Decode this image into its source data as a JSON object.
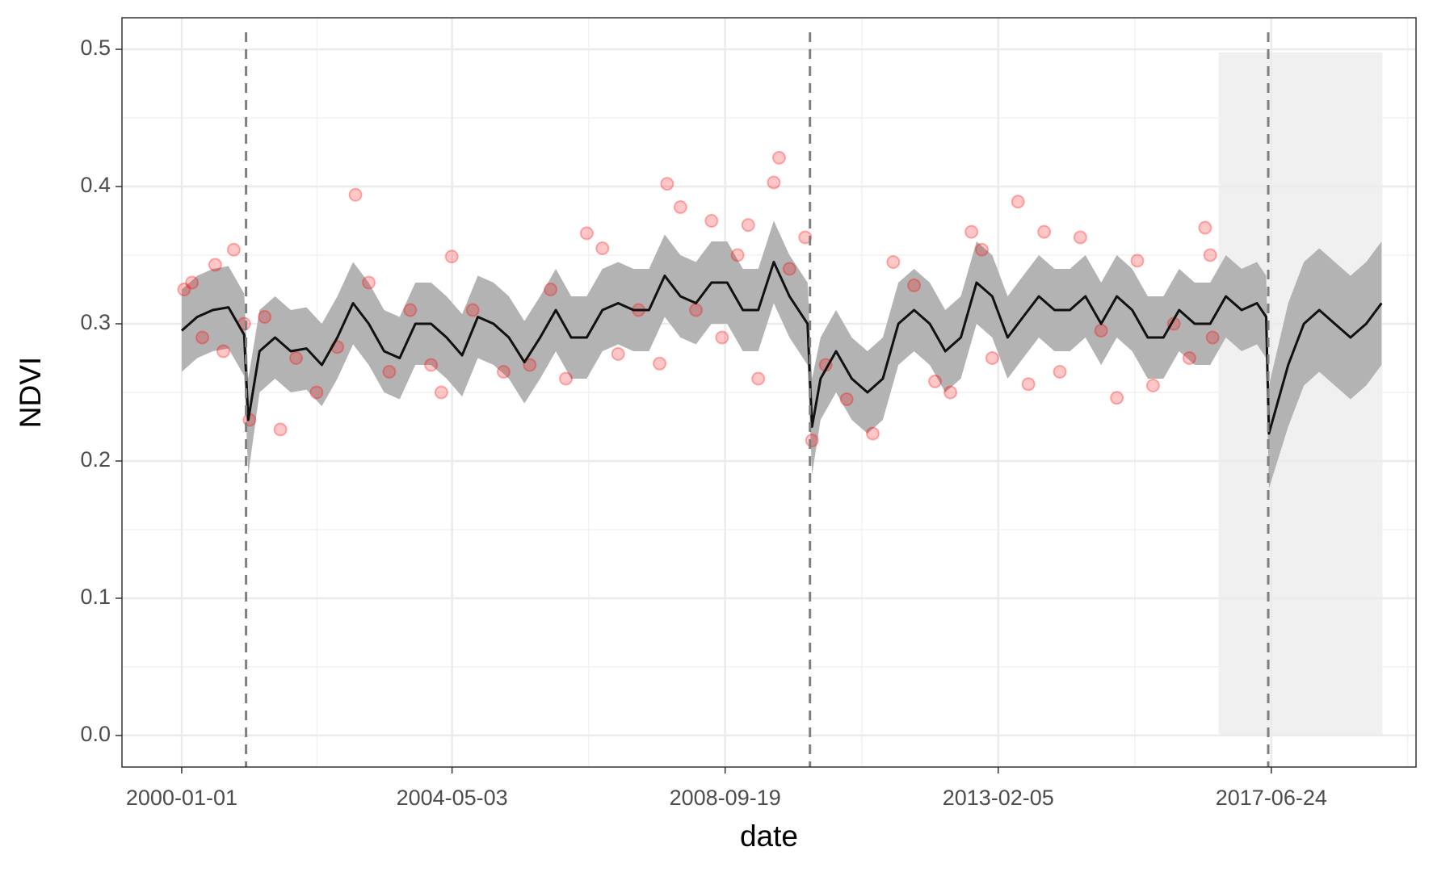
{
  "chart_data": {
    "type": "line",
    "xlabel": "date",
    "ylabel": "NDVI",
    "xlim": [
      "1999-01-16",
      "2019-10-20"
    ],
    "xticks": [
      "2000-01-01",
      "2004-05-03",
      "2008-09-19",
      "2013-02-05",
      "2017-06-24"
    ],
    "xminor": [
      "2002-03-03",
      "2006-07-12",
      "2010-11-28",
      "2015-04-16",
      "2019-09-01"
    ],
    "ylim": [
      -0.023,
      0.523
    ],
    "yticks": [
      {
        "value": 0,
        "label": "0.0"
      },
      0.1,
      0.2,
      0.3,
      0.4,
      0.5
    ],
    "yminor": [
      0.05,
      0.15,
      0.25,
      0.35,
      0.45
    ],
    "grid": true,
    "x": [
      "2000-01-01",
      "2000-04-01",
      "2000-07-01",
      "2000-10-01",
      "2001-01-01",
      "2001-01-25",
      "2001-04-01",
      "2001-07-01",
      "2001-10-01",
      "2002-01-01",
      "2002-04-01",
      "2002-07-01",
      "2002-10-01",
      "2003-01-01",
      "2003-04-01",
      "2003-07-01",
      "2003-10-01",
      "2004-01-01",
      "2004-04-01",
      "2004-07-01",
      "2004-10-01",
      "2005-01-01",
      "2005-04-01",
      "2005-07-01",
      "2005-10-01",
      "2006-01-01",
      "2006-04-01",
      "2006-07-01",
      "2006-10-01",
      "2007-01-01",
      "2007-04-01",
      "2007-07-01",
      "2007-10-01",
      "2008-01-01",
      "2008-04-01",
      "2008-07-01",
      "2008-10-01",
      "2009-01-01",
      "2009-04-01",
      "2009-07-01",
      "2009-10-01",
      "2010-01-15",
      "2010-02-10",
      "2010-04-01",
      "2010-07-01",
      "2010-10-01",
      "2011-01-01",
      "2011-04-01",
      "2011-07-01",
      "2011-10-01",
      "2012-01-01",
      "2012-04-01",
      "2012-07-01",
      "2012-10-01",
      "2013-01-01",
      "2013-04-01",
      "2013-07-01",
      "2013-10-01",
      "2014-01-01",
      "2014-04-01",
      "2014-07-01",
      "2014-10-01",
      "2015-01-01",
      "2015-04-01",
      "2015-07-01",
      "2015-10-01",
      "2016-01-01",
      "2016-04-01",
      "2016-07-01",
      "2016-10-01",
      "2017-01-01",
      "2017-04-01",
      "2017-05-25",
      "2017-06-10",
      "2017-10-01",
      "2018-01-01",
      "2018-04-01",
      "2018-07-01",
      "2018-10-01",
      "2019-01-01",
      "2019-04-01"
    ],
    "series": [
      {
        "color": "#111111",
        "values": [
          0.295,
          0.305,
          0.31,
          0.312,
          0.292,
          0.23,
          0.28,
          0.29,
          0.28,
          0.282,
          0.27,
          0.29,
          0.315,
          0.3,
          0.28,
          0.275,
          0.3,
          0.3,
          0.29,
          0.277,
          0.305,
          0.3,
          0.29,
          0.272,
          0.29,
          0.31,
          0.29,
          0.29,
          0.31,
          0.315,
          0.31,
          0.31,
          0.335,
          0.32,
          0.315,
          0.33,
          0.33,
          0.31,
          0.31,
          0.345,
          0.32,
          0.3,
          0.225,
          0.26,
          0.28,
          0.26,
          0.25,
          0.26,
          0.3,
          0.31,
          0.3,
          0.28,
          0.29,
          0.33,
          0.32,
          0.29,
          0.305,
          0.32,
          0.31,
          0.31,
          0.32,
          0.3,
          0.32,
          0.31,
          0.29,
          0.29,
          0.31,
          0.3,
          0.3,
          0.32,
          0.31,
          0.315,
          0.305,
          0.22,
          0.27,
          0.3,
          0.31,
          0.3,
          0.29,
          0.3,
          0.315
        ]
      }
    ],
    "ribbon": {
      "color": "#b3b3b3",
      "lower": [
        0.265,
        0.275,
        0.28,
        0.282,
        0.262,
        0.19,
        0.25,
        0.26,
        0.25,
        0.252,
        0.24,
        0.26,
        0.285,
        0.27,
        0.25,
        0.245,
        0.27,
        0.27,
        0.26,
        0.247,
        0.275,
        0.27,
        0.26,
        0.242,
        0.26,
        0.28,
        0.26,
        0.26,
        0.28,
        0.285,
        0.28,
        0.28,
        0.305,
        0.29,
        0.285,
        0.3,
        0.3,
        0.28,
        0.28,
        0.315,
        0.29,
        0.27,
        0.19,
        0.23,
        0.25,
        0.23,
        0.22,
        0.23,
        0.27,
        0.28,
        0.27,
        0.25,
        0.26,
        0.3,
        0.29,
        0.26,
        0.275,
        0.29,
        0.28,
        0.28,
        0.29,
        0.27,
        0.29,
        0.28,
        0.26,
        0.26,
        0.28,
        0.27,
        0.27,
        0.29,
        0.28,
        0.285,
        0.275,
        0.18,
        0.225,
        0.255,
        0.265,
        0.255,
        0.245,
        0.255,
        0.27
      ],
      "upper": [
        0.325,
        0.335,
        0.34,
        0.342,
        0.322,
        0.26,
        0.31,
        0.32,
        0.31,
        0.312,
        0.3,
        0.32,
        0.345,
        0.33,
        0.31,
        0.305,
        0.33,
        0.33,
        0.32,
        0.307,
        0.335,
        0.33,
        0.32,
        0.302,
        0.32,
        0.34,
        0.32,
        0.32,
        0.34,
        0.345,
        0.34,
        0.34,
        0.365,
        0.35,
        0.345,
        0.36,
        0.36,
        0.34,
        0.34,
        0.375,
        0.35,
        0.33,
        0.26,
        0.29,
        0.31,
        0.29,
        0.28,
        0.29,
        0.33,
        0.34,
        0.33,
        0.31,
        0.32,
        0.36,
        0.35,
        0.32,
        0.335,
        0.35,
        0.34,
        0.34,
        0.35,
        0.33,
        0.35,
        0.34,
        0.32,
        0.32,
        0.34,
        0.33,
        0.33,
        0.35,
        0.34,
        0.345,
        0.335,
        0.255,
        0.315,
        0.345,
        0.355,
        0.345,
        0.335,
        0.345,
        0.36
      ]
    },
    "points": {
      "color": "#ff0000",
      "x": [
        "2000-01-15",
        "2000-03-01",
        "2000-05-01",
        "2000-07-15",
        "2000-09-01",
        "2000-11-01",
        "2001-01-01",
        "2001-02-01",
        "2001-05-01",
        "2001-08-01",
        "2001-11-01",
        "2002-03-01",
        "2002-07-01",
        "2002-10-15",
        "2003-01-01",
        "2003-05-01",
        "2003-09-01",
        "2004-01-01",
        "2004-03-01",
        "2004-05-01",
        "2004-09-01",
        "2005-03-01",
        "2005-08-01",
        "2005-12-01",
        "2006-03-01",
        "2006-07-01",
        "2006-10-01",
        "2007-01-01",
        "2007-05-01",
        "2007-09-01",
        "2007-10-15",
        "2008-01-01",
        "2008-04-01",
        "2008-07-01",
        "2008-09-01",
        "2008-12-01",
        "2009-02-01",
        "2009-04-01",
        "2009-07-01",
        "2009-08-01",
        "2009-10-01",
        "2010-01-01",
        "2010-02-10",
        "2010-05-01",
        "2010-09-01",
        "2011-02-01",
        "2011-06-01",
        "2011-10-01",
        "2012-02-01",
        "2012-05-01",
        "2012-09-01",
        "2012-11-01",
        "2013-01-01",
        "2013-06-01",
        "2013-08-01",
        "2013-11-01",
        "2014-02-01",
        "2014-06-01",
        "2014-10-01",
        "2015-01-01",
        "2015-05-01",
        "2015-08-01",
        "2015-12-01",
        "2016-03-01",
        "2016-06-01",
        "2016-07-01",
        "2016-07-15"
      ],
      "values": [
        0.325,
        0.33,
        0.29,
        0.343,
        0.28,
        0.354,
        0.3,
        0.23,
        0.305,
        0.223,
        0.275,
        0.25,
        0.283,
        0.394,
        0.33,
        0.265,
        0.31,
        0.27,
        0.25,
        0.349,
        0.31,
        0.265,
        0.27,
        0.325,
        0.26,
        0.366,
        0.355,
        0.278,
        0.31,
        0.271,
        0.402,
        0.385,
        0.31,
        0.375,
        0.29,
        0.35,
        0.372,
        0.26,
        0.403,
        0.421,
        0.34,
        0.363,
        0.215,
        0.27,
        0.245,
        0.22,
        0.345,
        0.328,
        0.258,
        0.25,
        0.367,
        0.354,
        0.275,
        0.389,
        0.256,
        0.367,
        0.265,
        0.363,
        0.295,
        0.246,
        0.346,
        0.255,
        0.3,
        0.275,
        0.37,
        0.35,
        0.29
      ]
    },
    "vlines": [
      "2001-01-12",
      "2010-01-29",
      "2017-06-06"
    ],
    "shade": [
      "2016-08-19",
      "2019-04-06"
    ]
  }
}
